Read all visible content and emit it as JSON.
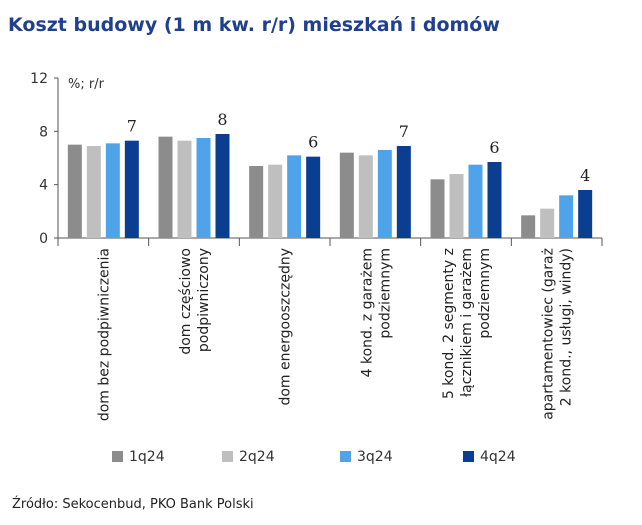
{
  "title": "Koszt budowy (1 m kw. r/r) mieszkań i domów",
  "source": "Źródło: Sekocenbud, PKO Bank Polski",
  "chart_data": {
    "type": "bar",
    "title": "Koszt budowy (1 m kw. r/r) mieszkań i domów",
    "unit_label": "%; r/r",
    "ylim": [
      0,
      12
    ],
    "yticks": [
      0,
      4,
      8,
      12
    ],
    "grid": false,
    "legend_position": "bottom",
    "categories": [
      [
        "dom bez podpiwniczenia"
      ],
      [
        "dom częściowo",
        "podpiwniczony"
      ],
      [
        "dom energooszczędny"
      ],
      [
        "4 kond. z garażem",
        "podziemnym"
      ],
      [
        "5 kond. 2 segmenty z",
        "łącznikiem i  garażem",
        "podziemnym"
      ],
      [
        "apartamentowiec (garaż",
        "2 kond., usługi, windy)"
      ]
    ],
    "series": [
      {
        "name": "1q24",
        "color": "#8c8c8c",
        "values": [
          7.0,
          7.6,
          5.4,
          6.4,
          4.4,
          1.7
        ]
      },
      {
        "name": "2q24",
        "color": "#bfbfbf",
        "values": [
          6.9,
          7.3,
          5.5,
          6.2,
          4.8,
          2.2
        ]
      },
      {
        "name": "3q24",
        "color": "#4fa3e8",
        "values": [
          7.1,
          7.5,
          6.2,
          6.6,
          5.5,
          3.2
        ]
      },
      {
        "name": "4q24",
        "color": "#0b3d91",
        "values": [
          7.3,
          7.8,
          6.1,
          6.9,
          5.7,
          3.6
        ]
      }
    ],
    "data_labels": [
      "7",
      "8",
      "6",
      "7",
      "6",
      "4"
    ]
  }
}
